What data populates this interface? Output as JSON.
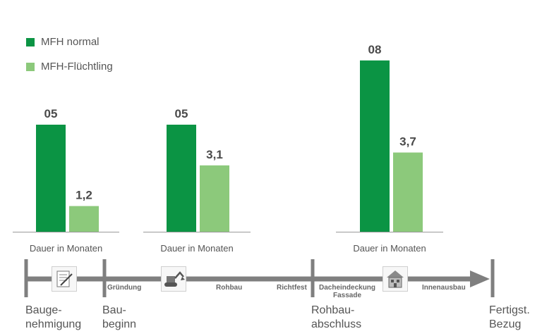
{
  "legend": [
    {
      "label": "MFH normal",
      "color": "#0b9444"
    },
    {
      "label": "MFH-Flüchtling",
      "color": "#8cc97b"
    }
  ],
  "chart_data": {
    "type": "bar",
    "series": [
      {
        "name": "MFH normal",
        "color": "#0b9444"
      },
      {
        "name": "MFH-Flüchtling",
        "color": "#8cc97b"
      }
    ],
    "groups": [
      {
        "xlabel": "Dauer in Monaten",
        "values": [
          5,
          1.2
        ],
        "labels": [
          "05",
          "1,2"
        ]
      },
      {
        "xlabel": "Dauer in Monaten",
        "values": [
          5,
          3.1
        ],
        "labels": [
          "05",
          "3,1"
        ]
      },
      {
        "xlabel": "Dauer in Monaten",
        "values": [
          8,
          3.7
        ],
        "labels": [
          "08",
          "3,7"
        ]
      }
    ],
    "ylim": [
      0,
      8
    ],
    "grid": false,
    "legend_position": "top-left"
  },
  "timeline": {
    "milestones": [
      {
        "line1": "Bauge-",
        "line2": "nehmigung"
      },
      {
        "line1": "Bau-",
        "line2": "beginn"
      },
      {
        "line1": "Rohbau-",
        "line2": "abschluss"
      },
      {
        "line1": "Fertigst.",
        "line2": "Bezug"
      }
    ],
    "phases": {
      "gruendung": "Gründung",
      "rohbau": "Rohbau",
      "richtfest": "Richtfest",
      "dach1": "Dacheindeckung",
      "dach2": "Fassade",
      "innen": "Innenausbau"
    },
    "icons": [
      "document-icon",
      "excavator-icon",
      "house-icon"
    ]
  }
}
